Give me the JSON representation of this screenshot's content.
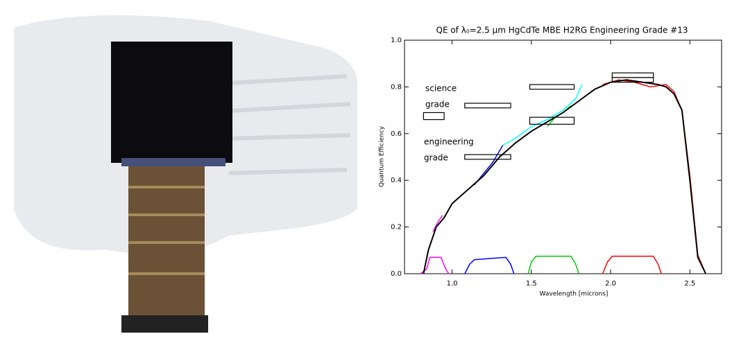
{
  "chart_data": {
    "type": "line",
    "title": "QE of λ₀=2.5 μm HgCdTe MBE H2RG Engineering Grade #13",
    "x_label": "Wavelength [microns]",
    "y_label": "Quantum Efficiency",
    "xlim": [
      0.7,
      2.7
    ],
    "ylim": [
      0,
      1.0
    ],
    "xticks": [
      {
        "value": 1.0,
        "label": "1.0"
      },
      {
        "value": 1.5,
        "label": "1.5"
      },
      {
        "value": 2.0,
        "label": "2.0"
      },
      {
        "value": 2.5,
        "label": "2.5"
      }
    ],
    "yticks": [
      {
        "value": 0,
        "label": "0.0"
      },
      {
        "value": 0.2,
        "label": "0.2"
      },
      {
        "value": 0.4,
        "label": "0.4"
      },
      {
        "value": 0.6,
        "label": "0.6"
      },
      {
        "value": 0.8,
        "label": "0.8"
      },
      {
        "value": 1.0,
        "label": "1.0"
      }
    ],
    "series": [
      {
        "color": "#ff00ff",
        "x": [
          0.8,
          0.84,
          0.86,
          0.93,
          0.96,
          0.98
        ],
        "values": [
          0,
          0.02,
          0.07,
          0.07,
          0.02,
          0
        ]
      },
      {
        "color": "#0000ff",
        "x": [
          1.08,
          1.11,
          1.14,
          1.34,
          1.37,
          1.39
        ],
        "values": [
          0,
          0.04,
          0.06,
          0.07,
          0.04,
          0
        ]
      },
      {
        "color": "#00cc00",
        "x": [
          1.48,
          1.5,
          1.53,
          1.75,
          1.78,
          1.8
        ],
        "values": [
          0,
          0.05,
          0.075,
          0.075,
          0.04,
          0
        ]
      },
      {
        "color": "#ff0000",
        "x": [
          1.95,
          1.98,
          2.01,
          2.27,
          2.3,
          2.32
        ],
        "values": [
          0,
          0.05,
          0.075,
          0.075,
          0.04,
          0
        ]
      },
      {
        "color": "#ff00ff",
        "x": [
          0.88,
          0.91,
          0.94
        ],
        "values": [
          0.18,
          0.22,
          0.25
        ]
      },
      {
        "color": "#00ffff",
        "x": [
          1.32,
          1.4,
          1.5,
          1.6,
          1.7,
          1.78,
          1.82
        ],
        "values": [
          0.55,
          0.58,
          0.63,
          0.66,
          0.7,
          0.75,
          0.81
        ]
      },
      {
        "color": "#0000ff",
        "x": [
          1.14,
          1.2,
          1.26,
          1.32
        ],
        "values": [
          0.38,
          0.43,
          0.48,
          0.55
        ]
      },
      {
        "color": "#00cc00",
        "x": [
          1.6,
          1.65,
          1.7,
          1.75
        ],
        "values": [
          0.63,
          0.67,
          0.69,
          0.72
        ]
      },
      {
        "color": "#ff0000",
        "x": [
          1.95,
          2.05,
          2.15,
          2.25,
          2.35,
          2.4,
          2.45,
          2.5,
          2.55,
          2.6
        ],
        "values": [
          0.81,
          0.83,
          0.82,
          0.8,
          0.81,
          0.78,
          0.7,
          0.42,
          0.08,
          0
        ]
      },
      {
        "color": "#000000",
        "x": [
          0.82,
          0.85,
          0.9,
          0.95,
          1.0,
          1.1,
          1.2,
          1.3,
          1.4,
          1.5,
          1.6,
          1.7,
          1.8,
          1.9,
          2.0,
          2.1,
          2.2,
          2.3,
          2.35,
          2.4,
          2.45,
          2.5,
          2.55,
          2.6
        ],
        "values": [
          0,
          0.1,
          0.2,
          0.24,
          0.3,
          0.36,
          0.42,
          0.5,
          0.56,
          0.61,
          0.65,
          0.69,
          0.74,
          0.79,
          0.82,
          0.83,
          0.82,
          0.81,
          0.8,
          0.77,
          0.7,
          0.4,
          0.07,
          0
        ]
      }
    ],
    "boxes": [
      {
        "x": [
          0.82,
          0.95
        ],
        "y": [
          0.66,
          0.69
        ]
      },
      {
        "x": [
          1.08,
          1.37
        ],
        "y": [
          0.71,
          0.73
        ]
      },
      {
        "x": [
          1.49,
          1.77
        ],
        "y": [
          0.79,
          0.81
        ]
      },
      {
        "x": [
          2.01,
          2.27
        ],
        "y": [
          0.84,
          0.86
        ]
      },
      {
        "x": [
          1.08,
          1.37
        ],
        "y": [
          0.49,
          0.51
        ]
      },
      {
        "x": [
          1.49,
          1.77
        ],
        "y": [
          0.64,
          0.67
        ]
      },
      {
        "x": [
          2.01,
          2.27
        ],
        "y": [
          0.82,
          0.84
        ]
      }
    ],
    "annotations": [
      "science",
      "grade",
      "engineering",
      "grade"
    ]
  }
}
